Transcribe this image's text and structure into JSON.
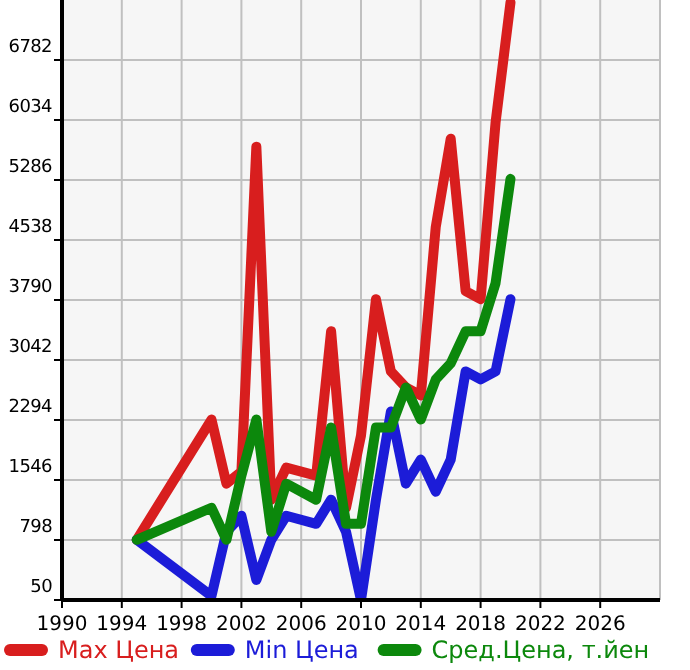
{
  "chart_data": {
    "type": "line",
    "x": [
      1995,
      2000,
      2001,
      2002,
      2003,
      2004,
      2005,
      2007,
      2008,
      2009,
      2010,
      2011,
      2012,
      2013,
      2014,
      2015,
      2016,
      2017,
      2018,
      2019,
      2020
    ],
    "series": [
      {
        "name": "Max Цена",
        "color": "#d81e1e",
        "values": [
          800,
          2300,
          1500,
          1650,
          5700,
          1300,
          1700,
          1600,
          3400,
          1200,
          2100,
          3800,
          2900,
          2700,
          2600,
          4700,
          5800,
          3900,
          3800,
          6000,
          7500
        ]
      },
      {
        "name": "Min Цена",
        "color": "#1c1cd8",
        "values": [
          800,
          100,
          900,
          1100,
          300,
          800,
          1100,
          1000,
          1300,
          900,
          50,
          1300,
          2400,
          1500,
          1800,
          1400,
          1800,
          2900,
          2800,
          2900,
          3800
        ]
      },
      {
        "name": "Сред.Цена, т.йен",
        "color": "#0c880c",
        "values": [
          800,
          1200,
          800,
          1600,
          2300,
          900,
          1500,
          1300,
          2200,
          1000,
          1000,
          2200,
          2200,
          2700,
          2300,
          2800,
          3000,
          3400,
          3400,
          4000,
          5300
        ]
      }
    ],
    "xlim": [
      1990,
      2030
    ],
    "xticks": [
      1990,
      1994,
      1998,
      2002,
      2006,
      2010,
      2014,
      2018,
      2022,
      2026
    ],
    "ylim": [
      50,
      7530
    ],
    "yticks": [
      50,
      798,
      1546,
      2294,
      3042,
      3790,
      4538,
      5286,
      6034,
      6782
    ],
    "grid": true,
    "legend": "bottom",
    "marker": "none",
    "line_style": "solid"
  }
}
